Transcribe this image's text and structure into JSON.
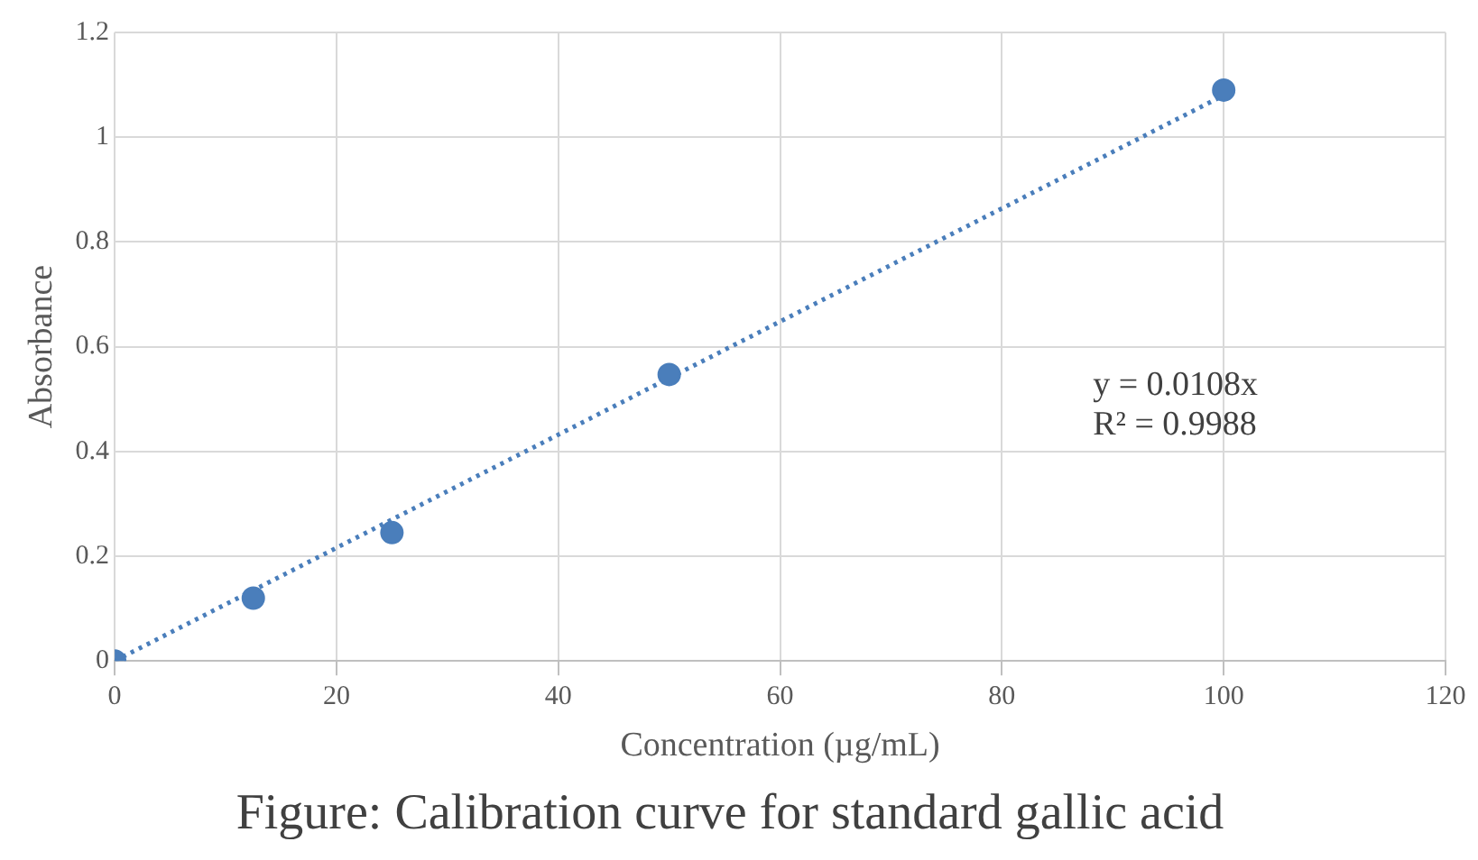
{
  "chart_data": {
    "type": "scatter",
    "title": "Figure: Calibration curve for standard gallic acid",
    "xlabel": "Concentration (µg/mL)",
    "ylabel": "Absorbance",
    "x": [
      0,
      12.5,
      25,
      50,
      100
    ],
    "series": [
      {
        "type": "scatter",
        "color": "#4a7ebb",
        "values": [
          0,
          0.12,
          0.245,
          0.547,
          1.09
        ],
        "marker": "circle"
      },
      {
        "type": "line",
        "color": "#4a7ebb",
        "x": [
          0,
          100
        ],
        "values": [
          0,
          1.08
        ],
        "marker": "none",
        "line_style": "dotted"
      }
    ],
    "xlim": [
      0,
      120
    ],
    "xticks": [
      0,
      20,
      40,
      60,
      80,
      100,
      120
    ],
    "ylim": [
      0,
      1.2
    ],
    "yticks": [
      0,
      0.2,
      0.4,
      0.6,
      0.8,
      1,
      1.2
    ],
    "grid": true,
    "legend": false,
    "annotations": [
      "y = 0.0108x",
      "R² = 0.9988"
    ]
  }
}
